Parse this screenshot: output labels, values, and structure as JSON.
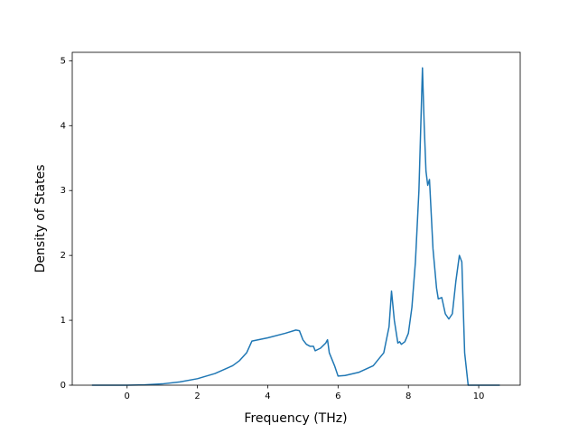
{
  "chart_data": {
    "type": "line",
    "xlabel": "Frequency (THz)",
    "ylabel": "Density of States",
    "x": [
      -1,
      -0.5,
      0,
      0.5,
      1,
      1.5,
      2,
      2.5,
      3,
      3.2,
      3.4,
      3.5,
      3.55,
      4.0,
      4.5,
      4.8,
      4.9,
      5.0,
      5.1,
      5.2,
      5.3,
      5.35,
      5.5,
      5.65,
      5.7,
      5.75,
      5.9,
      6.0,
      6.2,
      6.6,
      7.0,
      7.3,
      7.45,
      7.52,
      7.6,
      7.7,
      7.75,
      7.8,
      7.9,
      8.0,
      8.1,
      8.2,
      8.3,
      8.4,
      8.45,
      8.5,
      8.55,
      8.6,
      8.7,
      8.8,
      8.85,
      8.95,
      9.05,
      9.15,
      9.25,
      9.35,
      9.45,
      9.52,
      9.6,
      9.7,
      10.0,
      10.6
    ],
    "series": [
      {
        "color": "#1f77b4",
        "values": [
          0,
          0,
          0,
          0.005,
          0.02,
          0.05,
          0.1,
          0.18,
          0.3,
          0.38,
          0.5,
          0.62,
          0.68,
          0.73,
          0.8,
          0.85,
          0.84,
          0.7,
          0.63,
          0.6,
          0.6,
          0.53,
          0.57,
          0.65,
          0.7,
          0.5,
          0.3,
          0.14,
          0.15,
          0.2,
          0.3,
          0.5,
          0.9,
          1.45,
          1.0,
          0.65,
          0.67,
          0.63,
          0.67,
          0.8,
          1.2,
          1.9,
          3.0,
          4.89,
          4.0,
          3.3,
          3.08,
          3.17,
          2.1,
          1.5,
          1.33,
          1.35,
          1.1,
          1.02,
          1.1,
          1.6,
          2.0,
          1.9,
          0.5,
          0,
          0,
          0
        ]
      }
    ],
    "xlim": [
      -1.56,
      11.18
    ],
    "ylim": [
      0,
      5.13
    ],
    "xticks": [
      0,
      2,
      4,
      6,
      8,
      10
    ],
    "yticks": [
      0,
      1,
      2,
      3,
      4,
      5
    ]
  }
}
